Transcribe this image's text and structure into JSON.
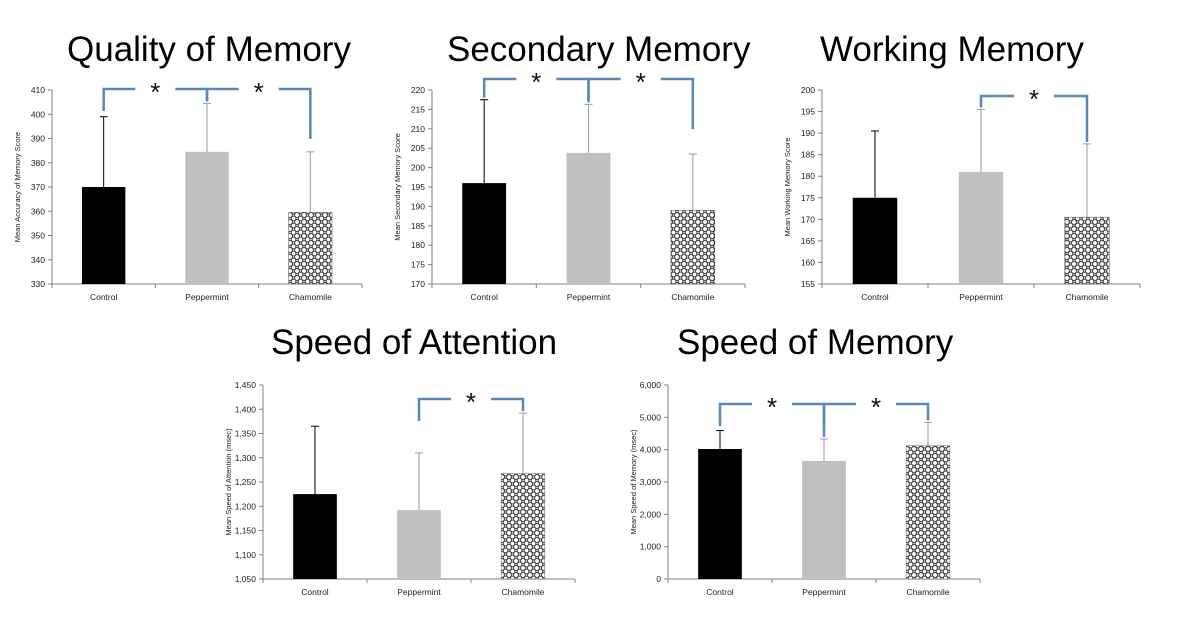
{
  "colors": {
    "control": "#000000",
    "peppermint": "#c0c0c0",
    "chamomile_pattern": "crosshatch-circles",
    "bracket": "#5b87b5",
    "axis": "#808080"
  },
  "chart_data": [
    {
      "id": "quality",
      "type": "bar",
      "title": "Quality of Memory",
      "ylabel": "Mean Accuracy of Memory Score",
      "categories": [
        "Control",
        "Peppermint",
        "Chamomile"
      ],
      "values": [
        370,
        384.5,
        359.5
      ],
      "errors": [
        29,
        20,
        25
      ],
      "ylim": [
        330,
        410
      ],
      "ticks": [
        330,
        340,
        350,
        360,
        370,
        380,
        390,
        400,
        410
      ],
      "tick_labels": [
        "330",
        "340",
        "350",
        "360",
        "370",
        "380",
        "390",
        "400",
        "410"
      ],
      "significance": [
        {
          "pair": [
            0,
            1
          ],
          "label": "*"
        },
        {
          "pair": [
            1,
            2
          ],
          "label": "*"
        }
      ]
    },
    {
      "id": "secondary",
      "type": "bar",
      "title": "Secondary Memory",
      "ylabel": "Mean Secondary Memory Score",
      "categories": [
        "Control",
        "Peppermint",
        "Chamomile"
      ],
      "values": [
        196,
        203.8,
        189
      ],
      "errors": [
        21.5,
        12.5,
        14.5
      ],
      "ylim": [
        170,
        220
      ],
      "ticks": [
        170,
        175,
        180,
        185,
        190,
        195,
        200,
        205,
        210,
        215,
        220
      ],
      "tick_labels": [
        "170",
        "175",
        "180",
        "185",
        "190",
        "195",
        "200",
        "205",
        "210",
        "215",
        "220"
      ],
      "significance": [
        {
          "pair": [
            0,
            1
          ],
          "label": "*"
        },
        {
          "pair": [
            1,
            2
          ],
          "label": "*"
        }
      ]
    },
    {
      "id": "working",
      "type": "bar",
      "title": "Working Memory",
      "ylabel": "Mean Working Memory Score",
      "categories": [
        "Control",
        "Peppermint",
        "Chamomile"
      ],
      "values": [
        175,
        181,
        170.5
      ],
      "errors": [
        15.5,
        14.5,
        17
      ],
      "ylim": [
        155,
        200
      ],
      "ticks": [
        155,
        160,
        165,
        170,
        175,
        180,
        185,
        190,
        195,
        200
      ],
      "tick_labels": [
        "155",
        "160",
        "165",
        "170",
        "175",
        "180",
        "185",
        "190",
        "195",
        "200"
      ],
      "significance": [
        {
          "pair": [
            1,
            2
          ],
          "label": "*"
        }
      ]
    },
    {
      "id": "attention",
      "type": "bar",
      "title": "Speed of Attention",
      "ylabel": "Mean Speed of Attention (msec)",
      "categories": [
        "Control",
        "Peppermint",
        "Chamomile"
      ],
      "values": [
        1225,
        1192,
        1267
      ],
      "errors": [
        140,
        118,
        125
      ],
      "ylim": [
        1050,
        1450
      ],
      "ticks": [
        1050,
        1100,
        1150,
        1200,
        1250,
        1300,
        1350,
        1400,
        1450
      ],
      "tick_labels": [
        "1,050",
        "1,100",
        "1,150",
        "1,200",
        "1,250",
        "1,300",
        "1,350",
        "1,400",
        "1,450"
      ],
      "significance": [
        {
          "pair": [
            1,
            2
          ],
          "label": "*"
        }
      ]
    },
    {
      "id": "speedmem",
      "type": "bar",
      "title": "Speed of Memory",
      "ylabel": "Mean Speed of Memory (msec)",
      "categories": [
        "Control",
        "Peppermint",
        "Chamomile"
      ],
      "values": [
        4020,
        3650,
        4120
      ],
      "errors": [
        570,
        680,
        720
      ],
      "ylim": [
        0,
        6000
      ],
      "ticks": [
        0,
        1000,
        2000,
        3000,
        4000,
        5000,
        6000
      ],
      "tick_labels": [
        "0",
        "1,000",
        "2,000",
        "3,000",
        "4,000",
        "5,000",
        "6,000"
      ],
      "significance": [
        {
          "pair": [
            0,
            1
          ],
          "label": "*"
        },
        {
          "pair": [
            1,
            2
          ],
          "label": "*"
        }
      ]
    }
  ]
}
